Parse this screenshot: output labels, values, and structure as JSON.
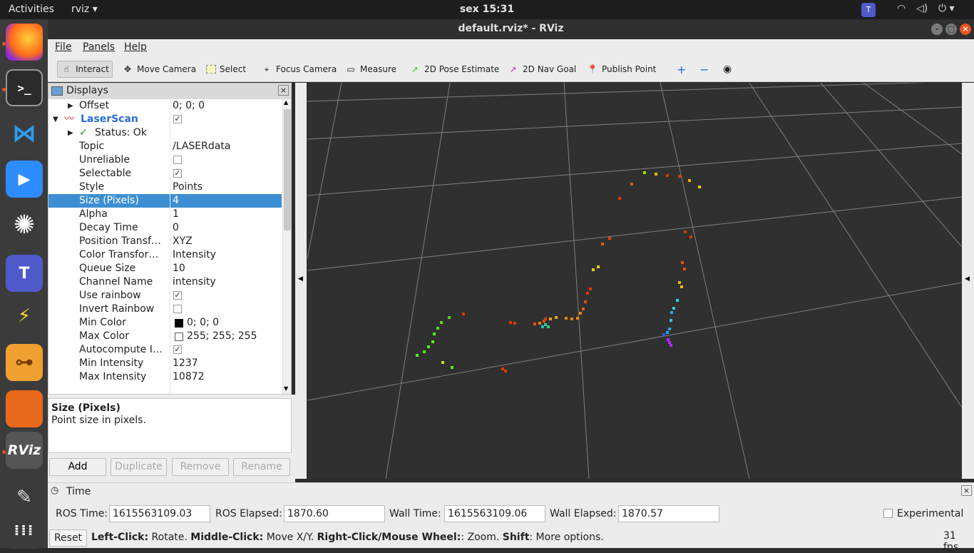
{
  "topbar": {
    "activities": "Activities",
    "app_name": "rviz",
    "clock": "sex 15:31"
  },
  "window": {
    "title": "default.rviz* - RViz"
  },
  "menu": {
    "file": "File",
    "panels": "Panels",
    "help": "Help"
  },
  "toolbar": {
    "interact": "Interact",
    "move_camera": "Move Camera",
    "select": "Select",
    "focus_camera": "Focus Camera",
    "measure": "Measure",
    "pose_estimate": "2D Pose Estimate",
    "nav_goal": "2D Nav Goal",
    "publish_point": "Publish Point"
  },
  "displays": {
    "title": "Displays",
    "rows": [
      {
        "key": "Offset",
        "value": "0; 0; 0"
      },
      {
        "key": "LaserScan",
        "value": ""
      },
      {
        "key": "Status: Ok",
        "value": "/LASERdata"
      },
      {
        "key": "Topic",
        "value": "/LASERdata"
      },
      {
        "key": "Unreliable",
        "value": ""
      },
      {
        "key": "Selectable",
        "value": ""
      },
      {
        "key": "Style",
        "value": "Points"
      },
      {
        "key": "Size (Pixels)",
        "value": "4"
      },
      {
        "key": "Alpha",
        "value": "1"
      },
      {
        "key": "Decay Time",
        "value": "0"
      },
      {
        "key": "Position Transf…",
        "value": "XYZ"
      },
      {
        "key": "Color Transfor…",
        "value": "Intensity"
      },
      {
        "key": "Queue Size",
        "value": "10"
      },
      {
        "key": "Channel Name",
        "value": "intensity"
      },
      {
        "key": "Use rainbow",
        "value": ""
      },
      {
        "key": "Invert Rainbow",
        "value": ""
      },
      {
        "key": "Min Color",
        "value": "0; 0; 0"
      },
      {
        "key": "Max Color",
        "value": "255; 255; 255"
      },
      {
        "key": "Autocompute I…",
        "value": ""
      },
      {
        "key": "Min Intensity",
        "value": "1237"
      },
      {
        "key": "Max Intensity",
        "value": "10872"
      }
    ]
  },
  "description": {
    "title": "Size (Pixels)",
    "text": "Point size in pixels."
  },
  "panel_buttons": {
    "add": "Add",
    "duplicate": "Duplicate",
    "remove": "Remove",
    "rename": "Rename"
  },
  "time": {
    "title": "Time",
    "ros_time_label": "ROS Time:",
    "ros_time": "1615563109.03",
    "ros_elapsed_label": "ROS Elapsed:",
    "ros_elapsed": "1870.60",
    "wall_time_label": "Wall Time:",
    "wall_time": "1615563109.06",
    "wall_elapsed_label": "Wall Elapsed:",
    "wall_elapsed": "1870.57",
    "experimental": "Experimental"
  },
  "status": {
    "reset": "Reset",
    "b1": "Left-Click:",
    "t1": " Rotate. ",
    "b2": "Middle-Click:",
    "t2": " Move X/Y. ",
    "b3": "Right-Click/Mouse Wheel:",
    "t3": ": Zoom. ",
    "b4": "Shift",
    "t4": ": More options.",
    "fps": "31 fps"
  }
}
